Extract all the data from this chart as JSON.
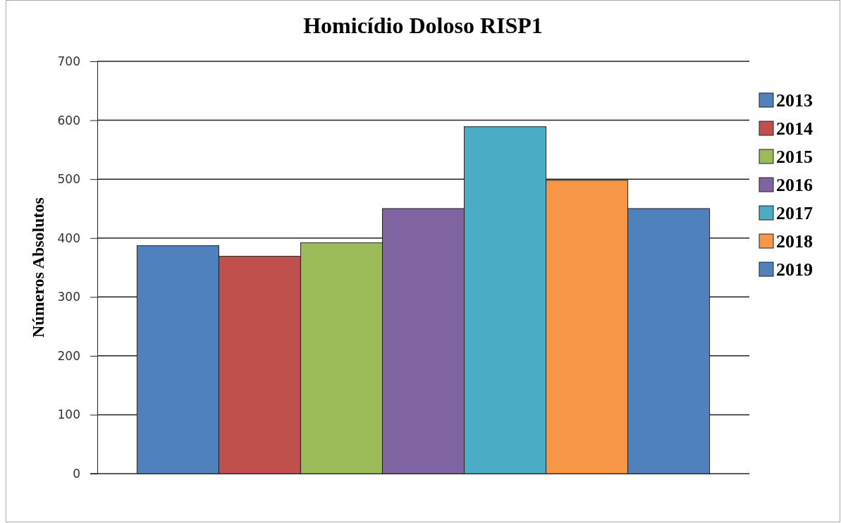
{
  "chart_data": {
    "type": "bar",
    "title": "Homicídio Doloso RISP1",
    "ylabel": "Números Absolutos",
    "categories": [
      null
    ],
    "series": [
      {
        "name": "2013",
        "color": "#4f81bd",
        "values": [
          387
        ]
      },
      {
        "name": "2014",
        "color": "#c0504d",
        "values": [
          369
        ]
      },
      {
        "name": "2015",
        "color": "#9bbb59",
        "values": [
          392
        ]
      },
      {
        "name": "2016",
        "color": "#8064a2",
        "values": [
          450
        ]
      },
      {
        "name": "2017",
        "color": "#4bacc6",
        "values": [
          589
        ]
      },
      {
        "name": "2018",
        "color": "#f79646",
        "values": [
          498
        ]
      },
      {
        "name": "2019",
        "color": "#4f81bd",
        "values": [
          450
        ]
      }
    ],
    "ylim": [
      0,
      700
    ],
    "yticks": [
      0,
      100,
      200,
      300,
      400,
      500,
      600,
      700
    ],
    "grid": "y",
    "legend": "right"
  }
}
